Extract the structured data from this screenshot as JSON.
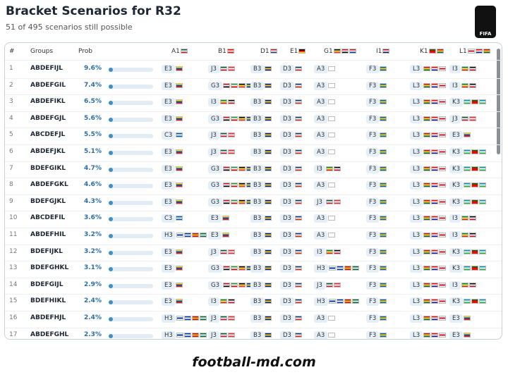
{
  "header": {
    "title": "Bracket Scenarios for R32",
    "subtitle": "51 of 495 scenarios still possible",
    "logo": "FIFA"
  },
  "table": {
    "columns": [
      "#",
      "Groups",
      "Prob",
      "A1",
      "B1",
      "D1",
      "E1",
      "G1",
      "I1",
      "K1",
      "L1"
    ],
    "rows": [
      {
        "num": "1",
        "groups": "ABDEFIJL",
        "prob": {
          "value": 9.6,
          "label": "9.6%"
        },
        "picks": [
          "E3",
          "J3",
          "B3",
          "D3",
          "A3",
          "F3",
          "L3",
          "I3"
        ]
      },
      {
        "num": "2",
        "groups": "ABDEFGIL",
        "prob": {
          "value": 7.4,
          "label": "7.4%"
        },
        "picks": [
          "E3",
          "G3",
          "B3",
          "D3",
          "A3",
          "F3",
          "L3",
          "I3"
        ]
      },
      {
        "num": "3",
        "groups": "ABDEFIKL",
        "prob": {
          "value": 6.5,
          "label": "6.5%"
        },
        "picks": [
          "E3",
          "I3",
          "B3",
          "D3",
          "A3",
          "F3",
          "L3",
          "K3"
        ]
      },
      {
        "num": "4",
        "groups": "ABDEFGJL",
        "prob": {
          "value": 5.6,
          "label": "5.6%"
        },
        "picks": [
          "E3",
          "G3",
          "B3",
          "D3",
          "A3",
          "F3",
          "L3",
          "J3"
        ]
      },
      {
        "num": "5",
        "groups": "ABCDEFJL",
        "prob": {
          "value": 5.5,
          "label": "5.5%"
        },
        "picks": [
          "C3",
          "J3",
          "B3",
          "D3",
          "A3",
          "F3",
          "L3",
          "E3"
        ]
      },
      {
        "num": "6",
        "groups": "ABDEFJKL",
        "prob": {
          "value": 5.1,
          "label": "5.1%"
        },
        "picks": [
          "E3",
          "J3",
          "B3",
          "D3",
          "A3",
          "F3",
          "L3",
          "K3"
        ]
      },
      {
        "num": "7",
        "groups": "BDEFGIKL",
        "prob": {
          "value": 4.7,
          "label": "4.7%"
        },
        "picks": [
          "E3",
          "G3",
          "B3",
          "D3",
          "I3",
          "F3",
          "L3",
          "K3"
        ]
      },
      {
        "num": "8",
        "groups": "ABDEFGKL",
        "prob": {
          "value": 4.6,
          "label": "4.6%"
        },
        "picks": [
          "E3",
          "G3",
          "B3",
          "D3",
          "A3",
          "F3",
          "L3",
          "K3"
        ]
      },
      {
        "num": "9",
        "groups": "BDEFGJKL",
        "prob": {
          "value": 4.3,
          "label": "4.3%"
        },
        "picks": [
          "E3",
          "G3",
          "B3",
          "D3",
          "J3",
          "F3",
          "L3",
          "K3"
        ]
      },
      {
        "num": "10",
        "groups": "ABCDEFIL",
        "prob": {
          "value": 3.6,
          "label": "3.6%"
        },
        "picks": [
          "C3",
          "E3",
          "B3",
          "D3",
          "A3",
          "F3",
          "L3",
          "I3"
        ]
      },
      {
        "num": "11",
        "groups": "ABDEFHIL",
        "prob": {
          "value": 3.2,
          "label": "3.2%"
        },
        "picks": [
          "H3",
          "E3",
          "B3",
          "D3",
          "A3",
          "F3",
          "L3",
          "I3"
        ]
      },
      {
        "num": "12",
        "groups": "BDEFIJKL",
        "prob": {
          "value": 3.2,
          "label": "3.2%"
        },
        "picks": [
          "E3",
          "J3",
          "B3",
          "D3",
          "I3",
          "F3",
          "L3",
          "K3"
        ]
      },
      {
        "num": "13",
        "groups": "BDEFGHKL",
        "prob": {
          "value": 3.1,
          "label": "3.1%"
        },
        "picks": [
          "E3",
          "G3",
          "B3",
          "D3",
          "H3",
          "F3",
          "L3",
          "K3"
        ]
      },
      {
        "num": "14",
        "groups": "BDEFGIJL",
        "prob": {
          "value": 2.9,
          "label": "2.9%"
        },
        "picks": [
          "E3",
          "G3",
          "B3",
          "D3",
          "J3",
          "F3",
          "L3",
          "I3"
        ]
      },
      {
        "num": "15",
        "groups": "BDEFHIKL",
        "prob": {
          "value": 2.4,
          "label": "2.4%"
        },
        "picks": [
          "E3",
          "I3",
          "B3",
          "D3",
          "H3",
          "F3",
          "L3",
          "K3"
        ]
      },
      {
        "num": "16",
        "groups": "ABDEFHJL",
        "prob": {
          "value": 2.4,
          "label": "2.4%"
        },
        "picks": [
          "H3",
          "J3",
          "B3",
          "D3",
          "A3",
          "F3",
          "L3",
          "E3"
        ]
      },
      {
        "num": "17",
        "groups": "ABDEFGHL",
        "prob": {
          "value": 2.3,
          "label": "2.3%"
        },
        "picks": [
          "H3",
          "J3",
          "B3",
          "D3",
          "A3",
          "F3",
          "L3",
          "E3"
        ]
      }
    ]
  },
  "footer": "football-md.com"
}
